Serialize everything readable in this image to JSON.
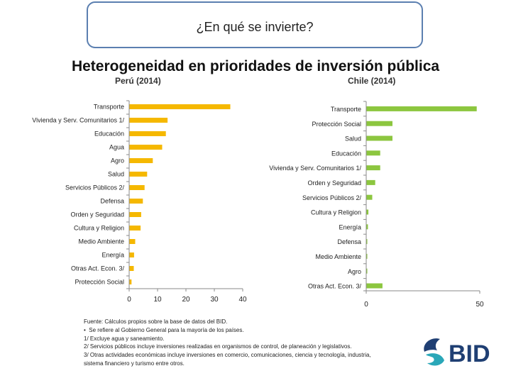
{
  "header": {
    "slide_title": "¿En qué se invierte?"
  },
  "heading": "Heterogeneidad en prioridades de inversión pública",
  "chart_data": [
    {
      "type": "bar",
      "orientation": "horizontal",
      "title": "Perú (2014)",
      "categories": [
        "Transporte",
        "Vivienda y Serv. Comunitarios 1/",
        "Educación",
        "Agua",
        "Agro",
        "Salud",
        "Servicios Públicos 2/",
        "Defensa",
        "Orden y Seguridad",
        "Cultura y Religion",
        "Medio Ambiente",
        "Energía",
        "Otras Act. Econ. 3/",
        "Protección Social"
      ],
      "values": [
        35.5,
        13.4,
        12.8,
        11.5,
        8.2,
        6.2,
        5.3,
        4.7,
        4.1,
        3.9,
        2.0,
        1.6,
        1.5,
        0.7
      ],
      "xlim": [
        0,
        40
      ],
      "xticks": [
        "0",
        "10",
        "20",
        "30",
        "40"
      ],
      "color": "#f5b800"
    },
    {
      "type": "bar",
      "orientation": "horizontal",
      "title": "Chile (2014)",
      "categories": [
        "Transporte",
        "Protección Social",
        "Salud",
        "Educación",
        "Vivienda y Serv. Comunitarios 1/",
        "Orden y Seguridad",
        "Servicios Públicos 2/",
        "Cultura y Religion",
        "Energía",
        "Defensa",
        "Medio Ambiente",
        "Agro",
        "Otras Act. Econ. 3/"
      ],
      "values": [
        48.5,
        11.4,
        11.4,
        6.0,
        6.0,
        3.8,
        2.5,
        0.8,
        0.6,
        0.1,
        0.1,
        0.1,
        7.0
      ],
      "xlim": [
        0,
        50
      ],
      "xticks": [
        "0",
        "50"
      ],
      "color": "#8cc63f"
    }
  ],
  "notes": [
    "Fuente: Cálculos propios sobre la base de datos del BID.",
    "Se refiere al Gobierno General para la mayoría de los países.",
    "1/ Excluye agua y saneamiento.",
    "2/ Servicios públicos incluye inversiones realizadas en organismos de control, de planeación y legislativos.",
    "3/ Otras actividades económicas incluye inversiones en comercio, comunicaciones, ciencia y tecnología, industria,",
    "sistema financiero y turismo entre otros."
  ],
  "notes_bullet": "•",
  "logo_text": "BID",
  "colors": {
    "logo_blue": "#1f3f73",
    "logo_teal": "#2aa7b8",
    "title_border": "#5b7fb0"
  }
}
